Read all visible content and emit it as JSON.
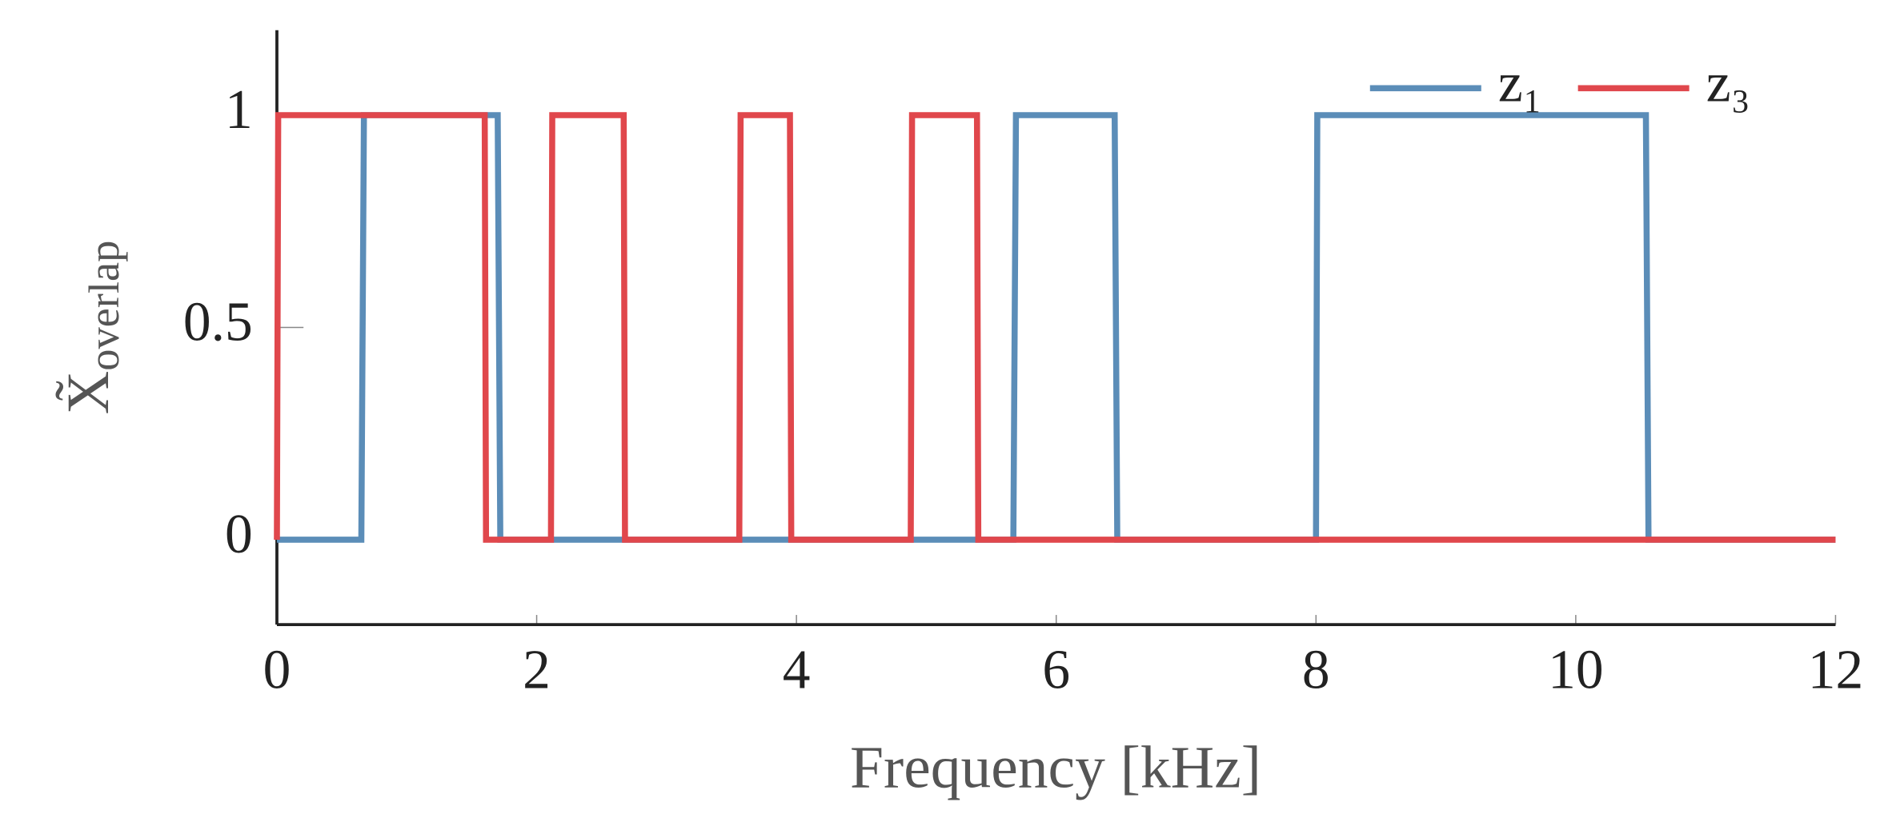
{
  "chart_data": {
    "type": "line",
    "x_label": "Frequency [kHz]",
    "y_label": {
      "main": "X̃",
      "sub": "overlap"
    },
    "xlim": [
      0,
      12
    ],
    "xticks": [
      0,
      2,
      4,
      6,
      8,
      10,
      12
    ],
    "ylim": [
      -0.2,
      1.2
    ],
    "yticks": [
      0,
      0.5,
      1
    ],
    "legend": "upper right",
    "series": [
      {
        "name": "z₁",
        "color": "#5b8db8",
        "x": [
          0,
          0.65,
          0.67,
          1.7,
          1.72,
          5.67,
          5.69,
          6.45,
          6.47,
          8.0,
          8.01,
          10.54,
          10.56,
          12
        ],
        "values": [
          0,
          0,
          1,
          1,
          0,
          0,
          1,
          1,
          0,
          0,
          1,
          1,
          0,
          0
        ]
      },
      {
        "name": "z₃",
        "color": "#e0474c",
        "x": [
          0,
          0.01,
          1.6,
          1.61,
          2.11,
          2.12,
          2.67,
          2.68,
          3.56,
          3.57,
          3.95,
          3.96,
          4.88,
          4.89,
          5.39,
          5.4,
          12
        ],
        "values": [
          0,
          1,
          1,
          0,
          0,
          1,
          1,
          0,
          0,
          1,
          1,
          0,
          0,
          1,
          1,
          0,
          0
        ]
      }
    ]
  }
}
